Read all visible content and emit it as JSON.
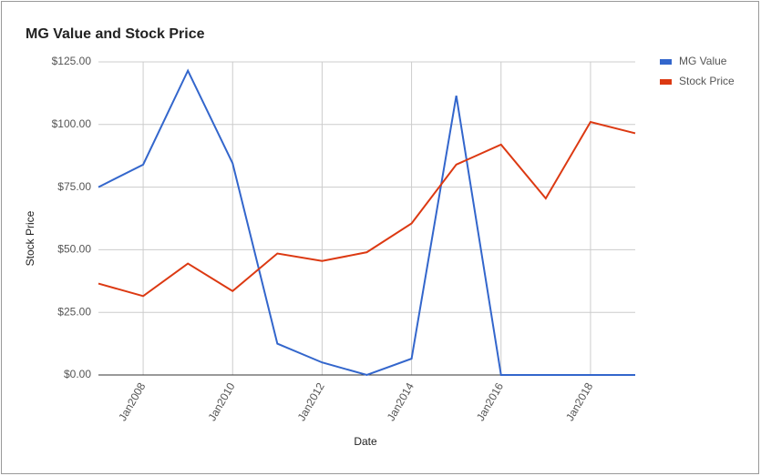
{
  "chart_data": {
    "type": "line",
    "title": "MG Value and Stock Price",
    "x_label": "Date",
    "y_label": "Stock Price",
    "x": [
      2007,
      2008,
      2009,
      2010,
      2011,
      2012,
      2013,
      2014,
      2015,
      2016,
      2017,
      2018,
      2019
    ],
    "series": [
      {
        "name": "MG Value",
        "color": "#3366cc",
        "values": [
          75,
          84,
          121.5,
          84.5,
          12.5,
          5,
          0,
          6.5,
          111.5,
          0,
          0,
          0,
          0
        ]
      },
      {
        "name": "Stock Price",
        "color": "#dc3912",
        "values": [
          36.5,
          31.5,
          44.5,
          33.5,
          48.5,
          45.5,
          49,
          60.5,
          84,
          92,
          70.5,
          101,
          96.5
        ]
      }
    ],
    "xlim": [
      2007,
      2019
    ],
    "xticks": [
      {
        "value": 2008,
        "label": "Jan2008"
      },
      {
        "value": 2010,
        "label": "Jan2010"
      },
      {
        "value": 2012,
        "label": "Jan2012"
      },
      {
        "value": 2014,
        "label": "Jan2014"
      },
      {
        "value": 2016,
        "label": "Jan2016"
      },
      {
        "value": 2018,
        "label": "Jan2018"
      }
    ],
    "ylim": [
      0,
      125
    ],
    "yticks": [
      {
        "value": 0,
        "label": "$0.00"
      },
      {
        "value": 25,
        "label": "$25.00"
      },
      {
        "value": 50,
        "label": "$50.00"
      },
      {
        "value": 75,
        "label": "$75.00"
      },
      {
        "value": 100,
        "label": "$100.00"
      },
      {
        "value": 125,
        "label": "$125.00"
      }
    ],
    "grid": true,
    "legend": "right"
  }
}
